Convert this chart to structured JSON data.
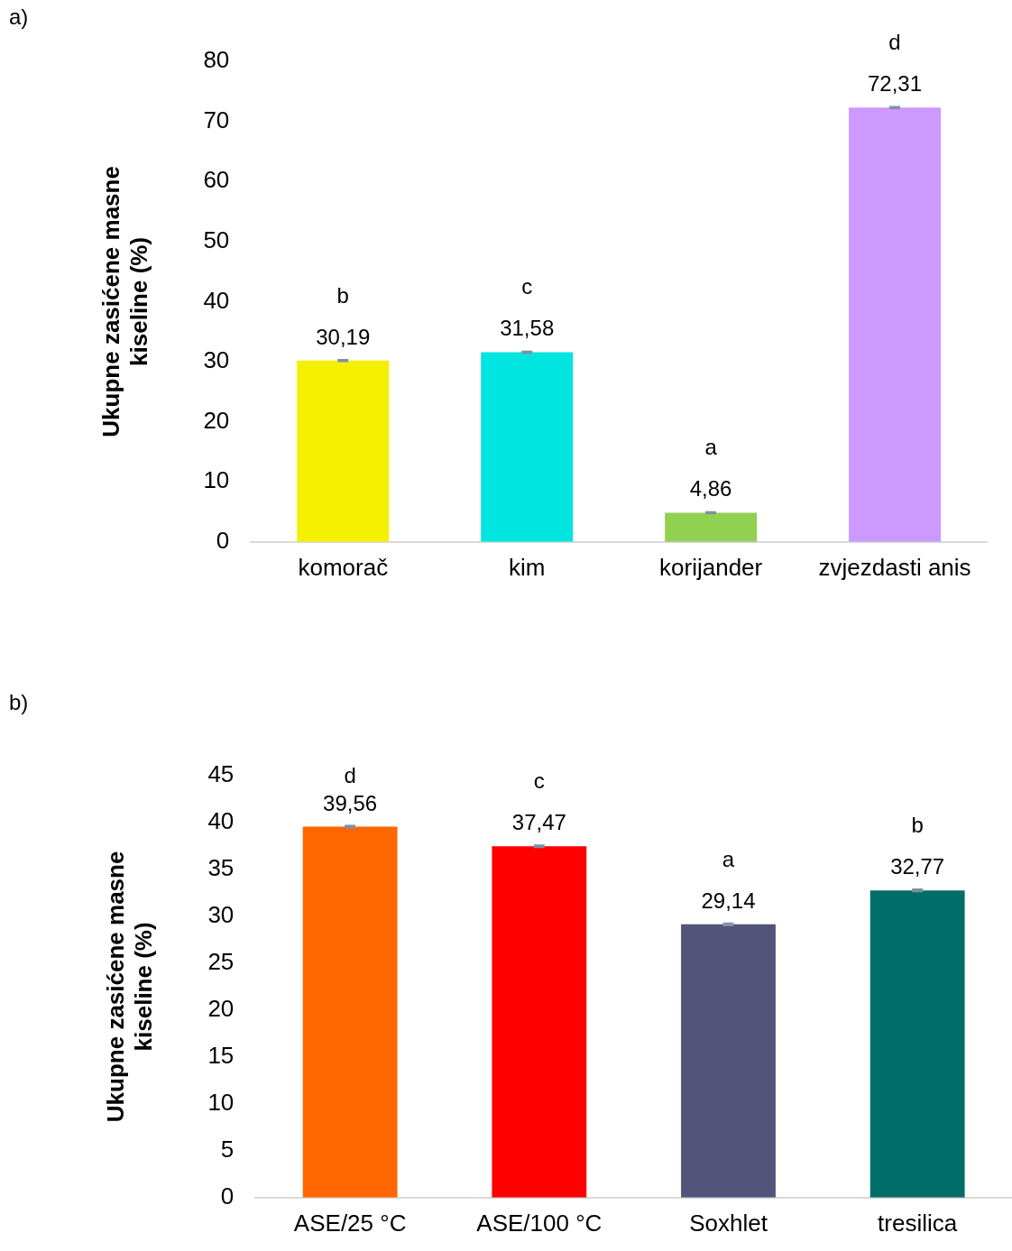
{
  "chart_data": [
    {
      "type": "bar",
      "ylabel": "Ukupne zasićene masne\nkiseline (%)",
      "categories": [
        "komorač",
        "kim",
        "korijander",
        "zvjezdasti anis"
      ],
      "values": [
        30.19,
        31.58,
        4.86,
        72.31
      ],
      "colors": [
        "#f5ef00",
        "#00e5e0",
        "#92d050",
        "#cc99ff"
      ],
      "errors": [
        0.1,
        0.1,
        0.1,
        0.1
      ],
      "value_labels": [
        "30,19",
        "31,58",
        "4,86",
        "72,31"
      ],
      "ylim": [
        0,
        80
      ],
      "yticks": [
        0,
        10,
        20,
        30,
        40,
        50,
        60,
        70,
        80
      ],
      "grid": false,
      "legend": false,
      "annotations": [
        "a)",
        {
          "text": "b",
          "x": "komorač",
          "y": 30.19
        },
        {
          "text": "c",
          "x": "kim",
          "y": 31.58
        },
        {
          "text": "a",
          "x": "korijander",
          "y": 4.86
        },
        {
          "text": "d",
          "x": "zvjezdasti anis",
          "y": 72.31
        }
      ]
    },
    {
      "type": "bar",
      "ylabel": "Ukupne zasićene masne\nkiseline (%)",
      "categories": [
        "ASE/25 °C",
        "ASE/100 °C",
        "Soxhlet",
        "tresilica"
      ],
      "values": [
        39.56,
        37.47,
        29.14,
        32.77
      ],
      "colors": [
        "#ff6600",
        "#ff0000",
        "#535479",
        "#006e68"
      ],
      "errors": [
        0.1,
        0.1,
        0.1,
        0.1
      ],
      "value_labels": [
        "39,56",
        "37,47",
        "29,14",
        "32,77"
      ],
      "ylim": [
        0,
        45
      ],
      "yticks": [
        0,
        5,
        10,
        15,
        20,
        25,
        30,
        35,
        40,
        45
      ],
      "grid": false,
      "legend": false,
      "annotations": [
        "b)",
        {
          "text": "d",
          "x": "ASE/25 °C",
          "y": 39.56
        },
        {
          "text": "c",
          "x": "ASE/100 °C",
          "y": 37.47
        },
        {
          "text": "a",
          "x": "Soxhlet",
          "y": 29.14
        },
        {
          "text": "b",
          "x": "tresilica",
          "y": 32.77
        }
      ]
    }
  ]
}
